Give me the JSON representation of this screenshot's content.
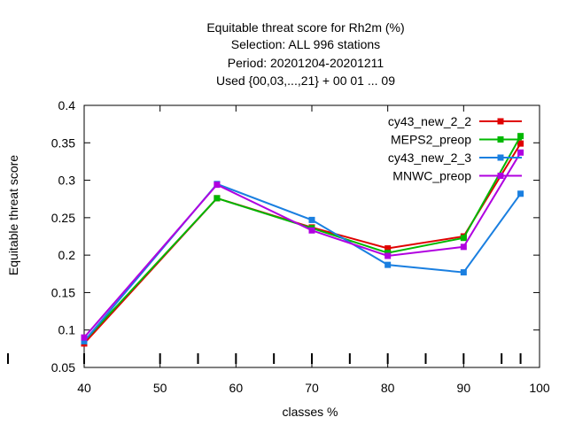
{
  "chart_data": {
    "type": "line",
    "title_lines": [
      "Equitable threat score  for Rh2m (%)",
      "Selection: ALL    996 stations",
      "Period: 20201204-20201211",
      "Used {00,03,...,21} + 00 01 ... 09"
    ],
    "xlabel": "classes %",
    "ylabel": "Equitable threat score",
    "xlim": [
      40,
      100
    ],
    "ylim": [
      0.05,
      0.4
    ],
    "x_ticks": [
      "40",
      "50",
      "60",
      "70",
      "80",
      "90",
      "100"
    ],
    "y_ticks": [
      "0.05",
      "0.1",
      "0.15",
      "0.2",
      "0.25",
      "0.3",
      "0.35",
      "0.4"
    ],
    "y_tick_values": [
      0.05,
      0.1,
      0.15,
      0.2,
      0.25,
      0.3,
      0.35,
      0.4
    ],
    "x_tick_values": [
      40,
      50,
      60,
      70,
      80,
      90,
      100
    ],
    "class_marks_x": [
      40,
      50,
      55,
      60,
      65,
      70,
      75,
      80,
      85,
      90,
      95,
      97.5
    ],
    "grid": false,
    "legend_position": "top-right",
    "series": [
      {
        "name": "cy43_new_2_2",
        "color": "#e00000",
        "x": [
          40,
          57.5,
          70,
          80,
          90,
          97.5
        ],
        "y": [
          0.082,
          0.276,
          0.237,
          0.209,
          0.225,
          0.349
        ]
      },
      {
        "name": "MEPS2_preop",
        "color": "#00b800",
        "x": [
          40,
          57.5,
          70,
          80,
          90,
          97.5
        ],
        "y": [
          0.085,
          0.276,
          0.236,
          0.203,
          0.223,
          0.359
        ]
      },
      {
        "name": "cy43_new_2_3",
        "color": "#1a7fe0",
        "x": [
          40,
          57.5,
          70,
          80,
          90,
          97.5
        ],
        "y": [
          0.085,
          0.295,
          0.247,
          0.187,
          0.177,
          0.282
        ]
      },
      {
        "name": "MNWC_preop",
        "color": "#b000e0",
        "x": [
          40,
          57.5,
          70,
          80,
          90,
          97.5
        ],
        "y": [
          0.09,
          0.294,
          0.233,
          0.199,
          0.211,
          0.337
        ]
      }
    ]
  }
}
